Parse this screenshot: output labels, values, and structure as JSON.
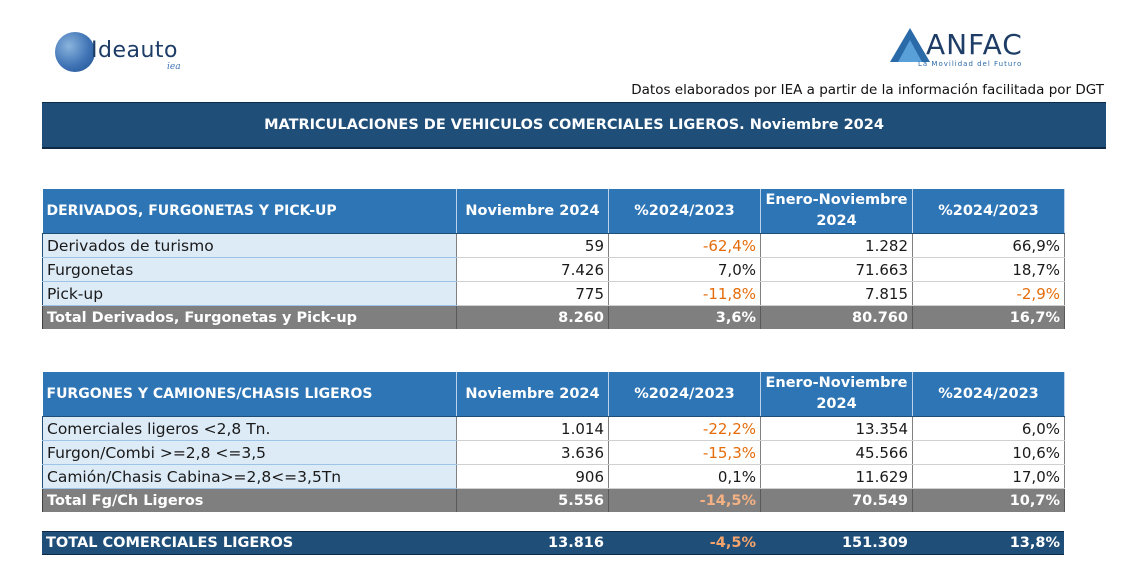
{
  "logos": {
    "left_word": "Ideauto",
    "left_sub": "iea",
    "right_word": "ANFAC",
    "right_tag": "La Movilidad del Futuro"
  },
  "source_note": "Datos elaborados por IEA a partir de la información facilitada por DGT",
  "title": "MATRICULACIONES DE VEHICULOS COMERCIALES LIGEROS. Noviembre 2024",
  "colors": {
    "header_dark": "#1f4e79",
    "header_blue": "#2e75b6",
    "row_label_bg": "#ddebf7",
    "total_bg": "#7f7f7f",
    "negative": "#e46c0a"
  },
  "section1": {
    "header": [
      "DERIVADOS, FURGONETAS Y PICK-UP",
      "Noviembre 2024",
      "%2024/2023",
      "Enero-Noviembre 2024",
      "%2024/2023"
    ],
    "rows": [
      [
        "Derivados de turismo",
        "59",
        "-62,4%",
        "1.282",
        "66,9%"
      ],
      [
        "Furgonetas",
        "7.426",
        "7,0%",
        "71.663",
        "18,7%"
      ],
      [
        "Pick-up",
        "775",
        "-11,8%",
        "7.815",
        "-2,9%"
      ]
    ],
    "total": [
      "Total Derivados, Furgonetas y Pick-up",
      "8.260",
      "3,6%",
      "80.760",
      "16,7%"
    ]
  },
  "section2": {
    "header": [
      "FURGONES Y CAMIONES/CHASIS LIGEROS",
      "Noviembre 2024",
      "%2024/2023",
      "Enero-Noviembre 2024",
      "%2024/2023"
    ],
    "rows": [
      [
        "Comerciales ligeros <2,8 Tn.",
        "1.014",
        "-22,2%",
        "13.354",
        "6,0%"
      ],
      [
        "Furgon/Combi >=2,8 <=3,5",
        "3.636",
        "-15,3%",
        "45.566",
        "10,6%"
      ],
      [
        "Camión/Chasis Cabina>=2,8<=3,5Tn",
        "906",
        "0,1%",
        "11.629",
        "17,0%"
      ]
    ],
    "total": [
      "Total Fg/Ch Ligeros",
      "5.556",
      "-14,5%",
      "70.549",
      "10,7%"
    ]
  },
  "grand_total": [
    "TOTAL COMERCIALES LIGEROS",
    "13.816",
    "-4,5%",
    "151.309",
    "13,8%"
  ]
}
